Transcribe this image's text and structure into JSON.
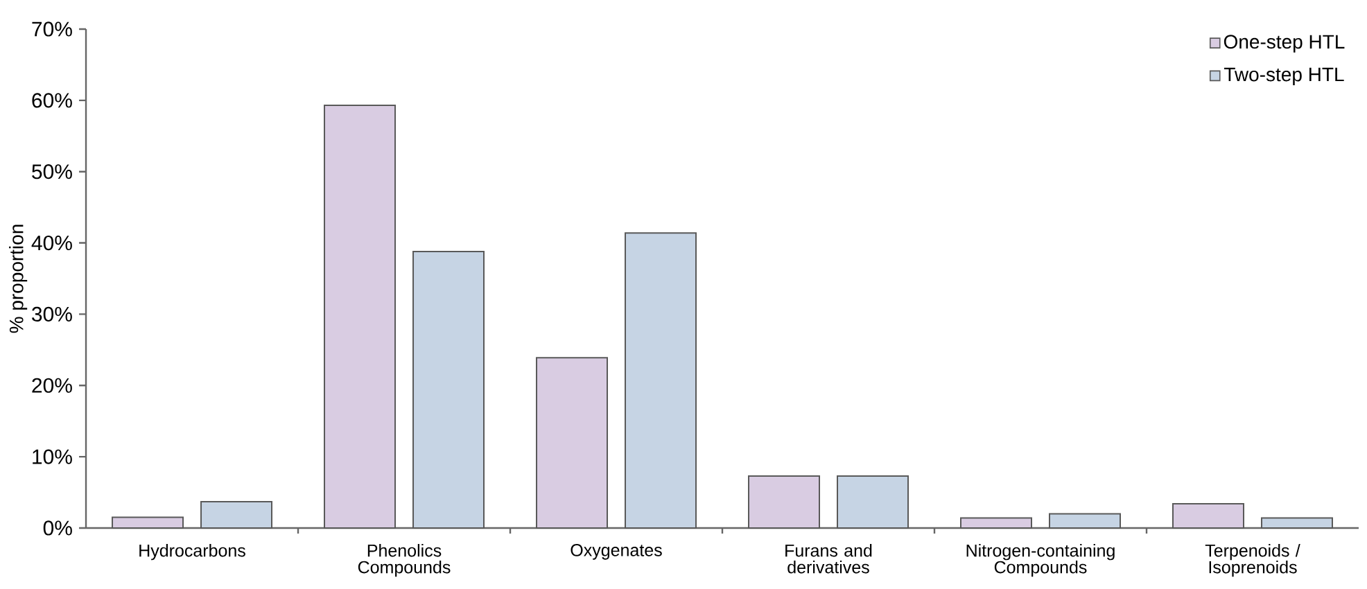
{
  "chart_data": {
    "type": "bar",
    "ylabel": "% proportion",
    "categories": [
      "Hydrocarbons",
      "Phenolics Compounds",
      "Oxygenates",
      "Furans and derivatives",
      "Nitrogen-containing Compounds",
      "Terpenoids / Isoprenoids"
    ],
    "series": [
      {
        "name": "One-step HTL",
        "color": "#d9cce2",
        "values": [
          1.5,
          59.3,
          23.9,
          7.3,
          1.4,
          3.4
        ]
      },
      {
        "name": "Two-step HTL",
        "color": "#c6d4e4",
        "values": [
          3.7,
          38.8,
          41.4,
          7.3,
          2.0,
          1.4
        ]
      }
    ],
    "ylim": [
      0,
      70
    ],
    "yticks": [
      {
        "value": 0,
        "label": "0%"
      },
      {
        "value": 10,
        "label": "10%"
      },
      {
        "value": 20,
        "label": "20%"
      },
      {
        "value": 30,
        "label": "30%"
      },
      {
        "value": 40,
        "label": "40%"
      },
      {
        "value": 50,
        "label": "50%"
      },
      {
        "value": 60,
        "label": "60%"
      },
      {
        "value": 70,
        "label": "70%"
      }
    ],
    "legend": "top right"
  }
}
